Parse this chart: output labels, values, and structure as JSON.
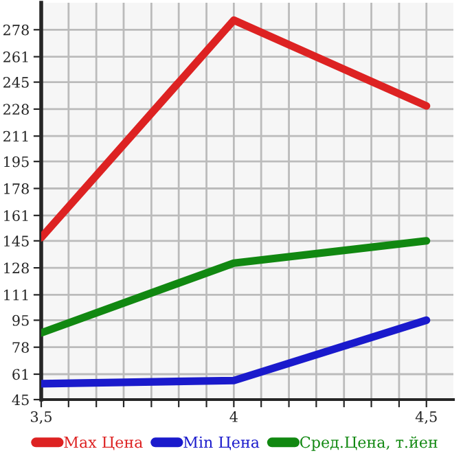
{
  "chart_data": {
    "type": "line",
    "x": [
      3.5,
      4,
      4.5
    ],
    "series": [
      {
        "name": "Max Цена",
        "color": "#dd2222",
        "values": [
          147,
          284,
          230
        ]
      },
      {
        "name": "Min Цена",
        "color": "#1a1acc",
        "values": [
          55,
          57,
          95
        ]
      },
      {
        "name": "Сред.Цена, т.йен",
        "color": "#118811",
        "values": [
          87,
          131,
          145
        ]
      }
    ],
    "xlim": [
      3.5,
      4.57
    ],
    "xticks": [
      {
        "value": 3.5,
        "label": "3,5"
      },
      {
        "value": 3.571,
        "label": null
      },
      {
        "value": 3.643,
        "label": null
      },
      {
        "value": 3.714,
        "label": null
      },
      {
        "value": 3.786,
        "label": null
      },
      {
        "value": 3.857,
        "label": null
      },
      {
        "value": 3.929,
        "label": null
      },
      4,
      {
        "value": 4.071,
        "label": null
      },
      {
        "value": 4.143,
        "label": null
      },
      {
        "value": 4.214,
        "label": null
      },
      {
        "value": 4.286,
        "label": null
      },
      {
        "value": 4.357,
        "label": null
      },
      {
        "value": 4.429,
        "label": null
      },
      {
        "value": 4.5,
        "label": "4,5"
      }
    ],
    "ylim": [
      45,
      295
    ],
    "yticks": [
      45,
      61,
      78,
      95,
      111,
      128,
      145,
      161,
      178,
      195,
      211,
      228,
      245,
      261,
      278
    ],
    "grid": true,
    "legend": "bottom",
    "marker": "none",
    "line_style": "solid"
  }
}
